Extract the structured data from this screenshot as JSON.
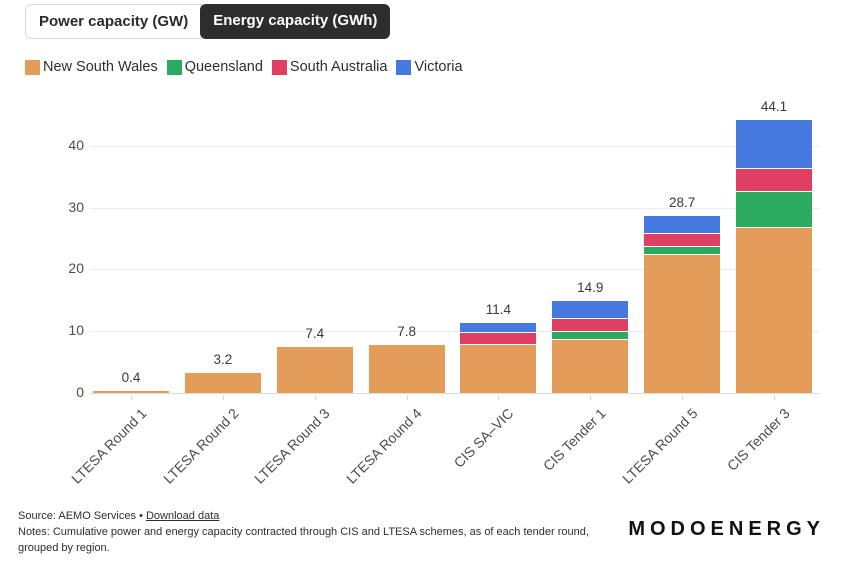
{
  "tabs": [
    {
      "label": "Power capacity (GW)",
      "active": false
    },
    {
      "label": "Energy capacity (GWh)",
      "active": true
    }
  ],
  "chart_data": {
    "type": "bar",
    "stacked": true,
    "legend_position": "top",
    "grid": true,
    "categories": [
      "LTESA Round 1",
      "LTESA Round 2",
      "LTESA Round 3",
      "LTESA Round 4",
      "CIS SA–VIC",
      "CIS Tender 1",
      "LTESA Round 5",
      "CIS Tender 3"
    ],
    "series": [
      {
        "name": "New South Wales",
        "color": "#E49C5B",
        "values": [
          0.4,
          3.2,
          7.4,
          7.8,
          7.8,
          8.6,
          22.4,
          26.7
        ]
      },
      {
        "name": "Queensland",
        "color": "#2AAB60",
        "values": [
          0,
          0,
          0,
          0,
          0,
          1.3,
          1.3,
          5.8
        ]
      },
      {
        "name": "South Australia",
        "color": "#DF3F63",
        "values": [
          0,
          0,
          0,
          0,
          1.9,
          2.1,
          2.0,
          3.8
        ]
      },
      {
        "name": "Victoria",
        "color": "#4679E0",
        "values": [
          0,
          0,
          0,
          0,
          1.7,
          2.9,
          3.0,
          7.8
        ]
      }
    ],
    "totals": [
      0.4,
      3.2,
      7.4,
      7.8,
      11.4,
      14.9,
      28.7,
      44.1
    ],
    "total_labels": [
      "0.4",
      "3.2",
      "7.4",
      "7.8",
      "11.4",
      "14.9",
      "28.7",
      "44.1"
    ],
    "yticks": [
      0,
      10,
      20,
      30,
      40
    ],
    "ylim": [
      0,
      46
    ],
    "xlabel": "",
    "ylabel": "",
    "title": ""
  },
  "footer": {
    "source_text": "Source: AEMO Services",
    "separator": "•",
    "download_link": "Download data",
    "notes": "Notes: Cumulative power and energy capacity contracted through CIS and LTESA schemes, as of each tender round, grouped by region.",
    "logo": "MODOENERGY"
  }
}
